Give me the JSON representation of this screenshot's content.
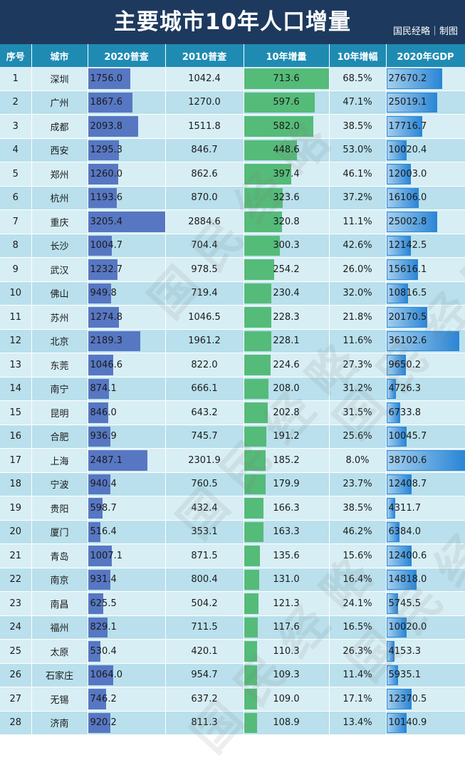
{
  "title": "主要城市10年人口增量",
  "credit": "国民经略｜制图",
  "watermark": "国民经略",
  "colors": {
    "title_bg": "#1d3a5e",
    "header_bg": "#1f8bb3",
    "pop_bar": "#5777c3",
    "increase_bar": "#55bb79",
    "gdp_bar": "#2b86d6"
  },
  "chart_data": {
    "type": "table",
    "columns": [
      "序号",
      "城市",
      "2020普查",
      "2010普查",
      "10年增量",
      "10年增幅",
      "2020年GDP"
    ],
    "rows": [
      {
        "rank": "1",
        "city": "深圳",
        "pop2020": "1756.0",
        "pop2010": "1042.4",
        "increase": "713.6",
        "rate": "68.5%",
        "gdp": "27670.2"
      },
      {
        "rank": "2",
        "city": "广州",
        "pop2020": "1867.6",
        "pop2010": "1270.0",
        "increase": "597.6",
        "rate": "47.1%",
        "gdp": "25019.1"
      },
      {
        "rank": "3",
        "city": "成都",
        "pop2020": "2093.8",
        "pop2010": "1511.8",
        "increase": "582.0",
        "rate": "38.5%",
        "gdp": "17716.7"
      },
      {
        "rank": "4",
        "city": "西安",
        "pop2020": "1295.3",
        "pop2010": "846.7",
        "increase": "448.6",
        "rate": "53.0%",
        "gdp": "10020.4"
      },
      {
        "rank": "5",
        "city": "郑州",
        "pop2020": "1260.0",
        "pop2010": "862.6",
        "increase": "397.4",
        "rate": "46.1%",
        "gdp": "12003.0"
      },
      {
        "rank": "6",
        "city": "杭州",
        "pop2020": "1193.6",
        "pop2010": "870.0",
        "increase": "323.6",
        "rate": "37.2%",
        "gdp": "16106.0"
      },
      {
        "rank": "7",
        "city": "重庆",
        "pop2020": "3205.4",
        "pop2010": "2884.6",
        "increase": "320.8",
        "rate": "11.1%",
        "gdp": "25002.8"
      },
      {
        "rank": "8",
        "city": "长沙",
        "pop2020": "1004.7",
        "pop2010": "704.4",
        "increase": "300.3",
        "rate": "42.6%",
        "gdp": "12142.5"
      },
      {
        "rank": "9",
        "city": "武汉",
        "pop2020": "1232.7",
        "pop2010": "978.5",
        "increase": "254.2",
        "rate": "26.0%",
        "gdp": "15616.1"
      },
      {
        "rank": "10",
        "city": "佛山",
        "pop2020": "949.8",
        "pop2010": "719.4",
        "increase": "230.4",
        "rate": "32.0%",
        "gdp": "10816.5"
      },
      {
        "rank": "11",
        "city": "苏州",
        "pop2020": "1274.8",
        "pop2010": "1046.5",
        "increase": "228.3",
        "rate": "21.8%",
        "gdp": "20170.5"
      },
      {
        "rank": "12",
        "city": "北京",
        "pop2020": "2189.3",
        "pop2010": "1961.2",
        "increase": "228.1",
        "rate": "11.6%",
        "gdp": "36102.6"
      },
      {
        "rank": "13",
        "city": "东莞",
        "pop2020": "1046.6",
        "pop2010": "822.0",
        "increase": "224.6",
        "rate": "27.3%",
        "gdp": "9650.2"
      },
      {
        "rank": "14",
        "city": "南宁",
        "pop2020": "874.1",
        "pop2010": "666.1",
        "increase": "208.0",
        "rate": "31.2%",
        "gdp": "4726.3"
      },
      {
        "rank": "15",
        "city": "昆明",
        "pop2020": "846.0",
        "pop2010": "643.2",
        "increase": "202.8",
        "rate": "31.5%",
        "gdp": "6733.8"
      },
      {
        "rank": "16",
        "city": "合肥",
        "pop2020": "936.9",
        "pop2010": "745.7",
        "increase": "191.2",
        "rate": "25.6%",
        "gdp": "10045.7"
      },
      {
        "rank": "17",
        "city": "上海",
        "pop2020": "2487.1",
        "pop2010": "2301.9",
        "increase": "185.2",
        "rate": "8.0%",
        "gdp": "38700.6"
      },
      {
        "rank": "18",
        "city": "宁波",
        "pop2020": "940.4",
        "pop2010": "760.5",
        "increase": "179.9",
        "rate": "23.7%",
        "gdp": "12408.7"
      },
      {
        "rank": "19",
        "city": "贵阳",
        "pop2020": "598.7",
        "pop2010": "432.4",
        "increase": "166.3",
        "rate": "38.5%",
        "gdp": "4311.7"
      },
      {
        "rank": "20",
        "city": "厦门",
        "pop2020": "516.4",
        "pop2010": "353.1",
        "increase": "163.3",
        "rate": "46.2%",
        "gdp": "6384.0"
      },
      {
        "rank": "21",
        "city": "青岛",
        "pop2020": "1007.1",
        "pop2010": "871.5",
        "increase": "135.6",
        "rate": "15.6%",
        "gdp": "12400.6"
      },
      {
        "rank": "22",
        "city": "南京",
        "pop2020": "931.4",
        "pop2010": "800.4",
        "increase": "131.0",
        "rate": "16.4%",
        "gdp": "14818.0"
      },
      {
        "rank": "23",
        "city": "南昌",
        "pop2020": "625.5",
        "pop2010": "504.2",
        "increase": "121.3",
        "rate": "24.1%",
        "gdp": "5745.5"
      },
      {
        "rank": "24",
        "city": "福州",
        "pop2020": "829.1",
        "pop2010": "711.5",
        "increase": "117.6",
        "rate": "16.5%",
        "gdp": "10020.0"
      },
      {
        "rank": "25",
        "city": "太原",
        "pop2020": "530.4",
        "pop2010": "420.1",
        "increase": "110.3",
        "rate": "26.3%",
        "gdp": "4153.3"
      },
      {
        "rank": "26",
        "city": "石家庄",
        "pop2020": "1064.0",
        "pop2010": "954.7",
        "increase": "109.3",
        "rate": "11.4%",
        "gdp": "5935.1"
      },
      {
        "rank": "27",
        "city": "无锡",
        "pop2020": "746.2",
        "pop2010": "637.2",
        "increase": "109.0",
        "rate": "17.1%",
        "gdp": "12370.5"
      },
      {
        "rank": "28",
        "city": "济南",
        "pop2020": "920.2",
        "pop2010": "811.3",
        "increase": "108.9",
        "rate": "13.4%",
        "gdp": "10140.9"
      }
    ]
  }
}
